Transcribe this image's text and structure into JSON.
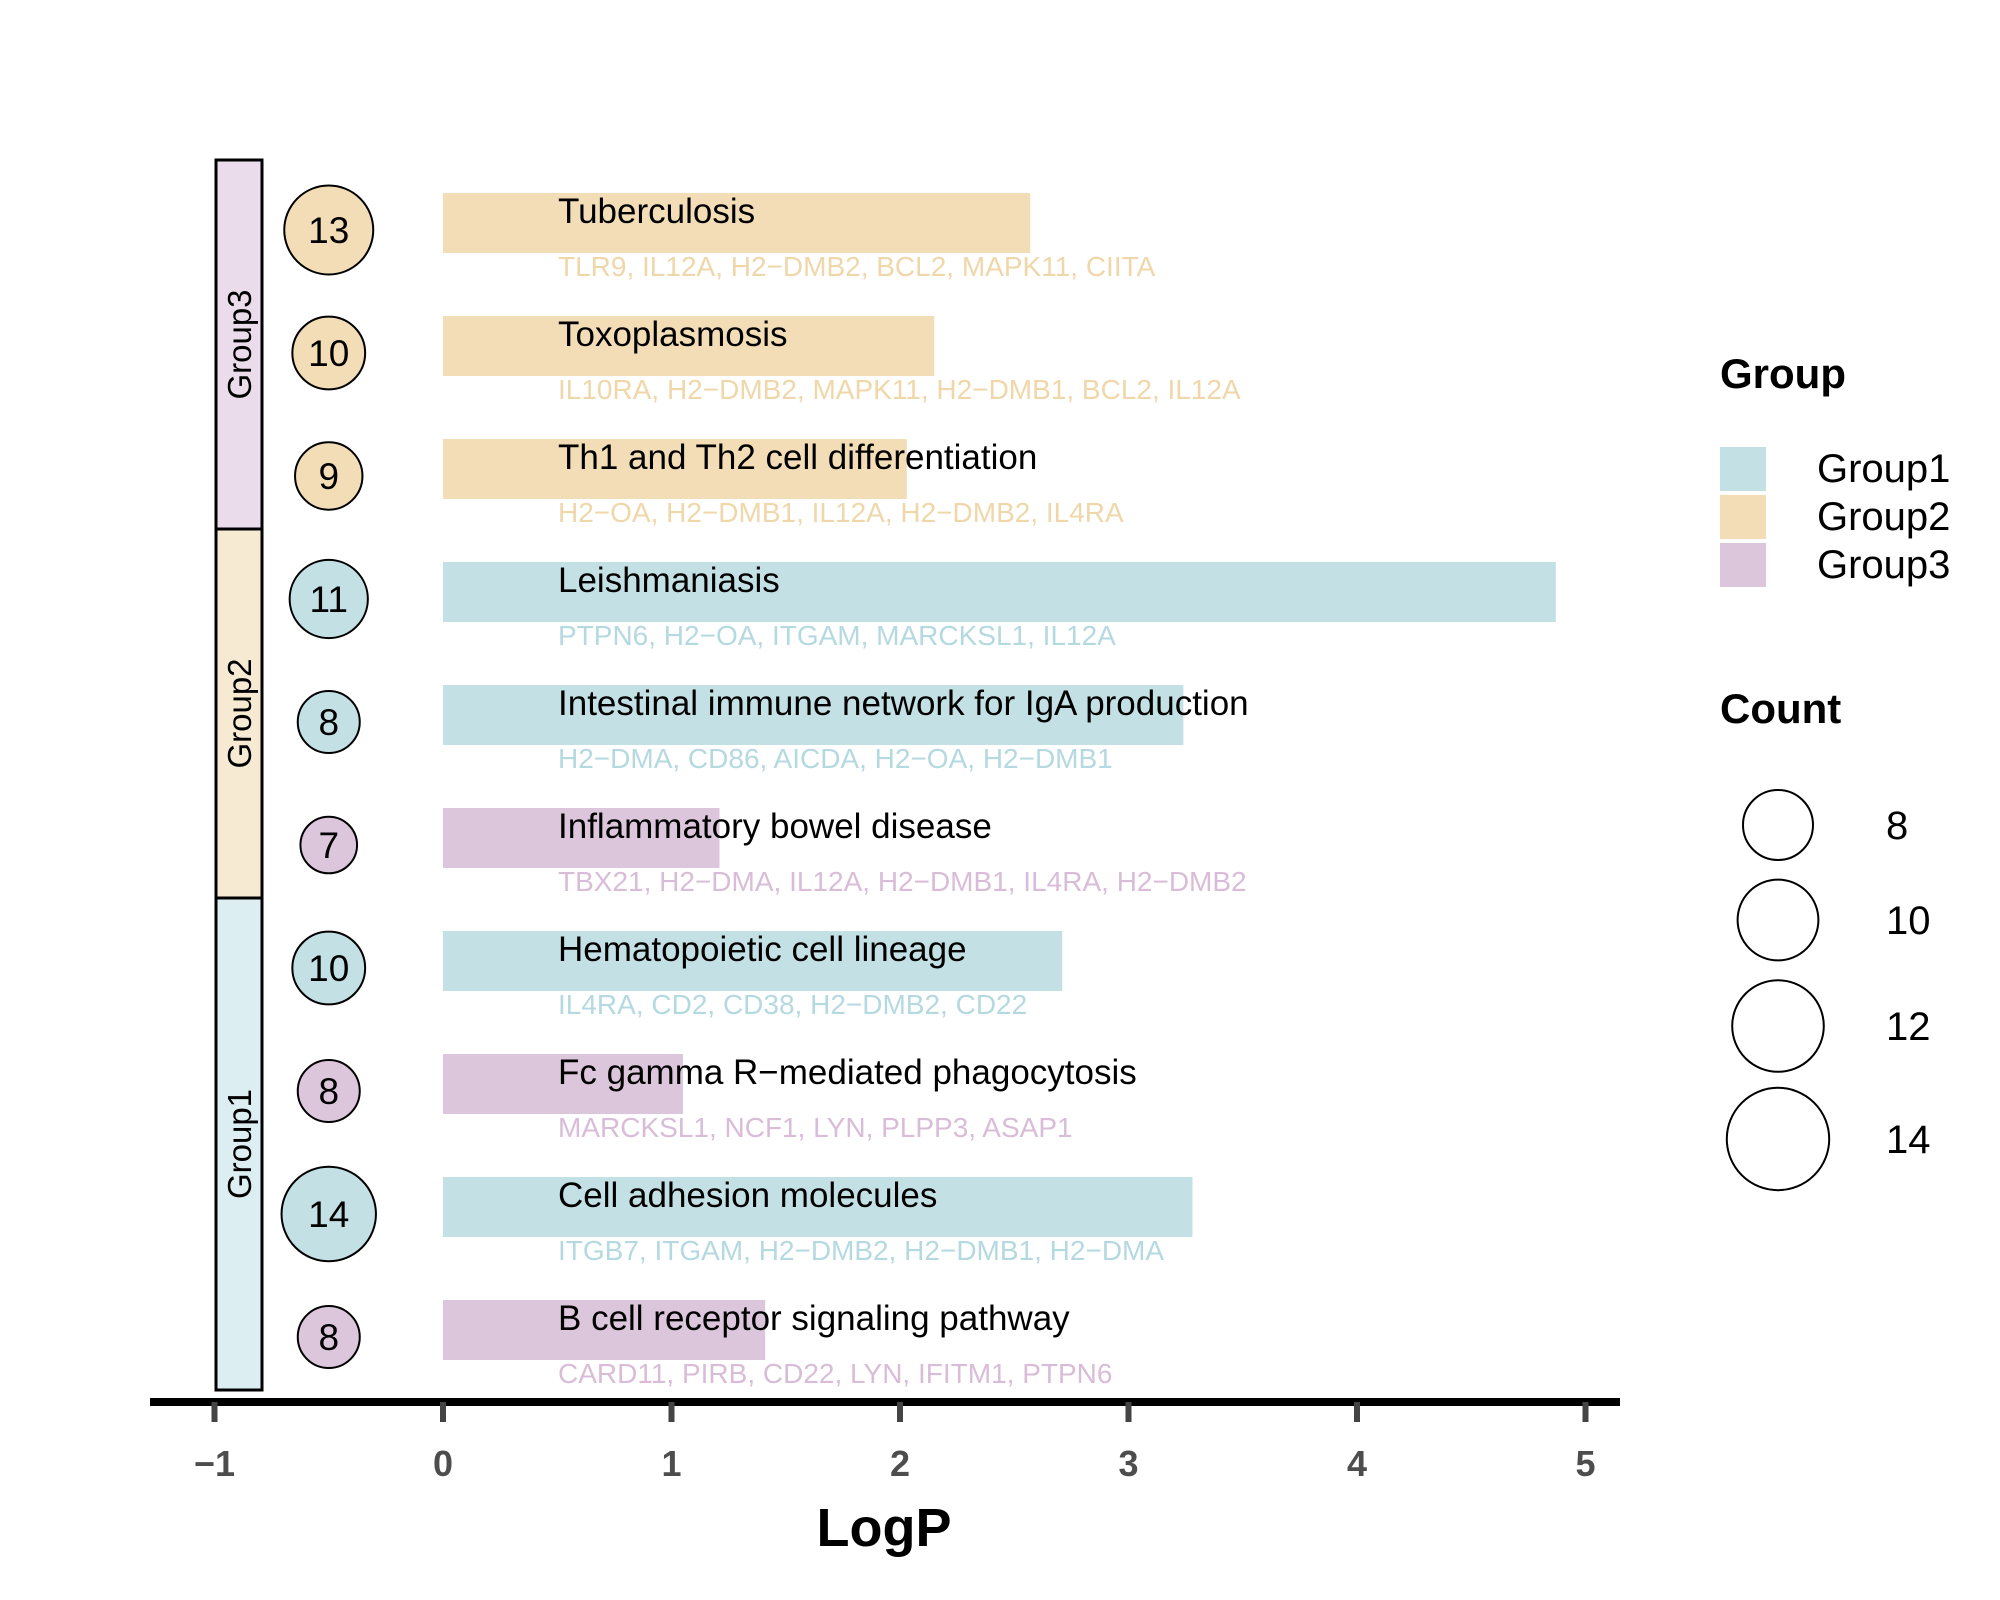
{
  "chart_data": {
    "type": "bar",
    "xlabel": "LogP",
    "ylabel": "",
    "xlim": [
      -1.25,
      5.15
    ],
    "xticks": [
      -1,
      0,
      1,
      2,
      3,
      4,
      5
    ],
    "xtick_labels": [
      "−1",
      "0",
      "1",
      "2",
      "3",
      "4",
      "5"
    ],
    "colors": {
      "Group1": "#c3e0e5",
      "Group2": "#f2ddb7",
      "Group3": "#dcc6dc"
    },
    "strip_colors": {
      "Group1": "#dceef2",
      "Group2": "#f7ead3",
      "Group3": "#ebdcec"
    },
    "gene_colors": {
      "Group1": "#b5d9e0",
      "Group2": "#f0d7aa",
      "Group3": "#d9bdd8"
    },
    "legend": {
      "group_title": "Group",
      "group_entries": [
        "Group1",
        "Group2",
        "Group3"
      ],
      "count_title": "Count",
      "count_entries": [
        8,
        10,
        12,
        14
      ],
      "count_labels": [
        "8",
        "10",
        "12",
        "14"
      ],
      "position": "right"
    },
    "strips": [
      {
        "label": "Group1",
        "group": "Group1",
        "rows": 4
      },
      {
        "label": "Group2",
        "group": "Group2",
        "rows": 3
      },
      {
        "label": "Group3",
        "group": "Group3",
        "rows": 3
      }
    ],
    "terms": [
      {
        "name": "Tuberculosis",
        "group": "Group2",
        "logp": 2.57,
        "count": 13,
        "count_label": "13",
        "genes": "TLR9, IL12A, H2−DMB2, BCL2, MAPK11, CIITA"
      },
      {
        "name": "Toxoplasmosis",
        "group": "Group2",
        "logp": 2.15,
        "count": 10,
        "count_label": "10",
        "genes": "IL10RA, H2−DMB2, MAPK11, H2−DMB1, BCL2, IL12A"
      },
      {
        "name": "Th1 and Th2 cell differentiation",
        "group": "Group2",
        "logp": 2.03,
        "count": 9,
        "count_label": "9",
        "genes": "H2−OA, H2−DMB1, IL12A, H2−DMB2, IL4RA"
      },
      {
        "name": "Leishmaniasis",
        "group": "Group1",
        "logp": 4.87,
        "count": 11,
        "count_label": "11",
        "genes": "PTPN6, H2−OA, ITGAM, MARCKSL1, IL12A"
      },
      {
        "name": "Intestinal immune network for IgA production",
        "group": "Group1",
        "logp": 3.24,
        "count": 8,
        "count_label": "8",
        "genes": "H2−DMA, CD86, AICDA, H2−OA, H2−DMB1"
      },
      {
        "name": "Inflammatory bowel disease",
        "group": "Group3",
        "logp": 1.21,
        "count": 7,
        "count_label": "7",
        "genes": "TBX21, H2−DMA, IL12A, H2−DMB1, IL4RA, H2−DMB2"
      },
      {
        "name": "Hematopoietic cell lineage",
        "group": "Group1",
        "logp": 2.71,
        "count": 10,
        "count_label": "10",
        "genes": "IL4RA, CD2, CD38, H2−DMB2, CD22"
      },
      {
        "name": "Fc gamma R−mediated phagocytosis",
        "group": "Group3",
        "logp": 1.05,
        "count": 8,
        "count_label": "8",
        "genes": "MARCKSL1, NCF1, LYN, PLPP3, ASAP1"
      },
      {
        "name": "Cell adhesion molecules",
        "group": "Group1",
        "logp": 3.28,
        "count": 14,
        "count_label": "14",
        "genes": "ITGB7, ITGAM, H2−DMB2, H2−DMB1, H2−DMA"
      },
      {
        "name": "B cell receptor signaling pathway",
        "group": "Group3",
        "logp": 1.41,
        "count": 8,
        "count_label": "8",
        "genes": "CARD11, PIRB, CD22, LYN, IFITM1, PTPN6"
      }
    ]
  }
}
